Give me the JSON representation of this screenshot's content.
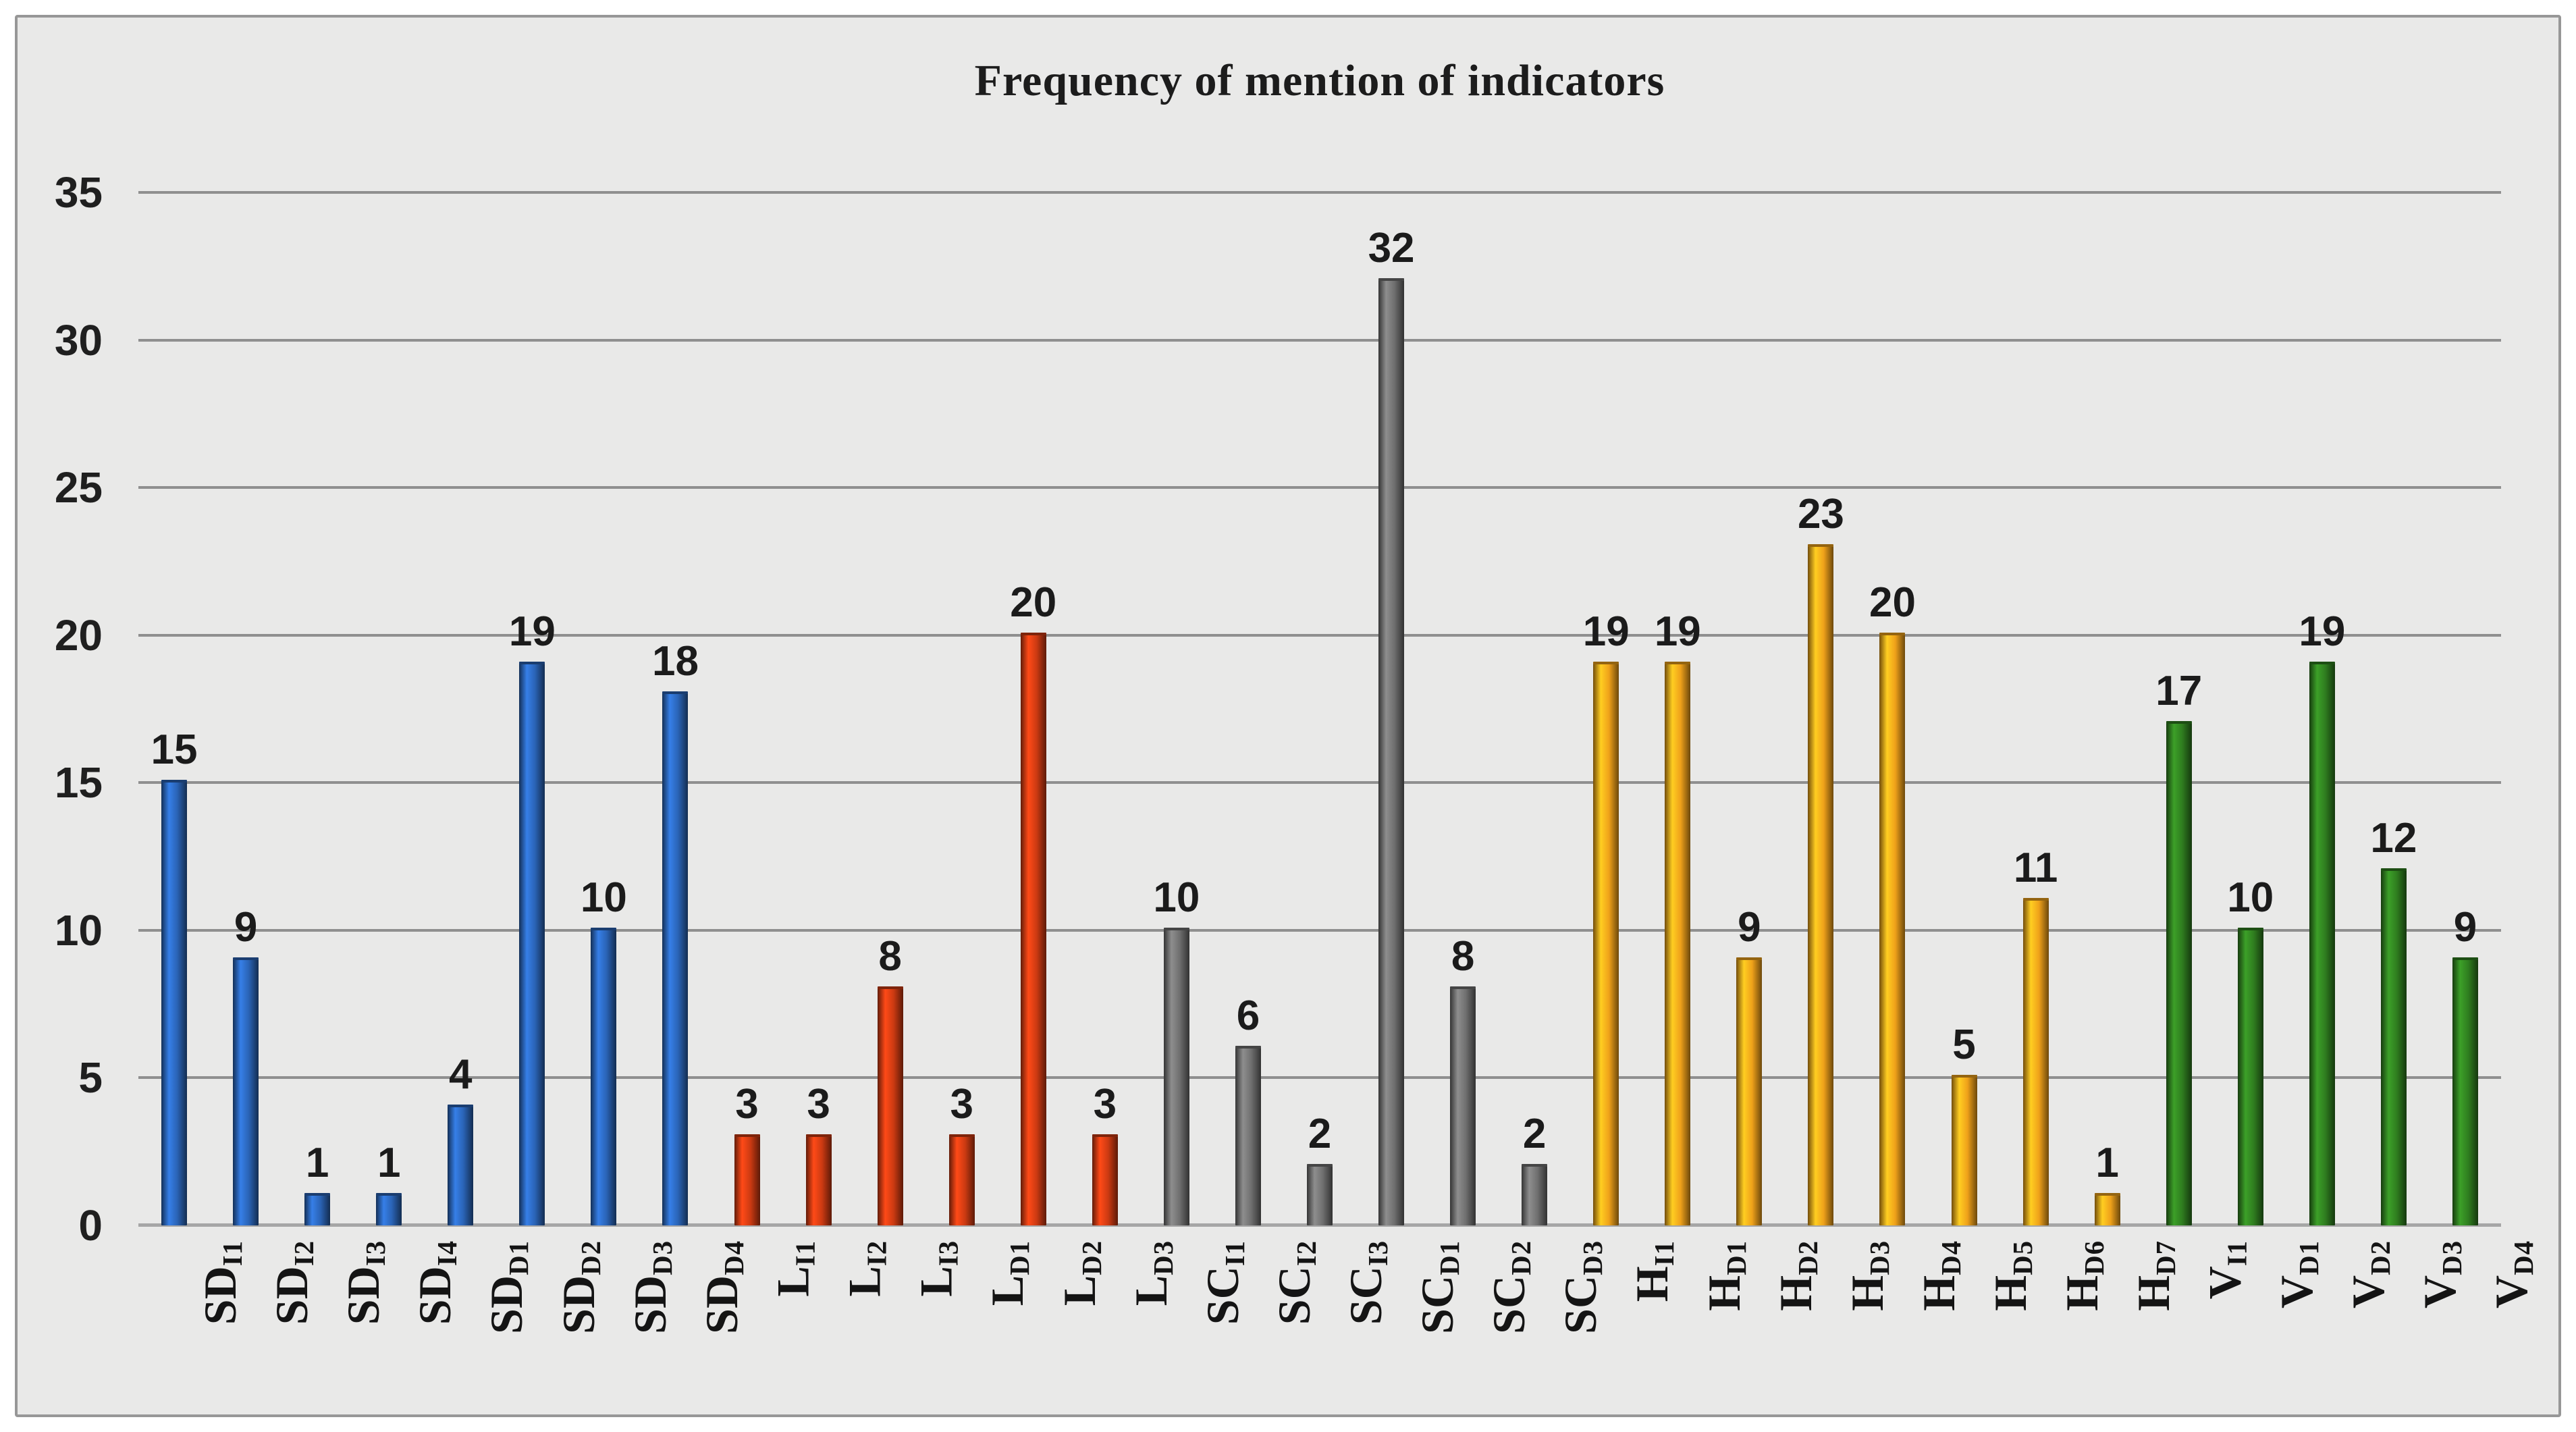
{
  "chart_data": {
    "type": "bar",
    "title": "Frequency of mention of indicators",
    "xlabel": "",
    "ylabel": "",
    "ylim": [
      0,
      35
    ],
    "yticks": [
      0,
      5,
      10,
      15,
      20,
      25,
      30,
      35
    ],
    "grid": true,
    "legend": "none",
    "background_color": "#e9e9e8",
    "gridline_color": "#8f8f8f",
    "frame_border_color": "#979797",
    "group_colors": {
      "SD": "#2a63b5",
      "L": "#cc3a12",
      "SC": "#6f6f6f",
      "H": "#efa11a",
      "V": "#2f7d1f"
    },
    "categories": [
      "SD_I1",
      "SD_I2",
      "SD_I3",
      "SD_I4",
      "SD_D1",
      "SD_D2",
      "SD_D3",
      "SD_D4",
      "L_I1",
      "L_I2",
      "L_I3",
      "L_D1",
      "L_D2",
      "L_D3",
      "SC_I1",
      "SC_I2",
      "SC_I3",
      "SC_D1",
      "SC_D2",
      "SC_D3",
      "H_I1",
      "H_D1",
      "H_D2",
      "H_D3",
      "H_D4",
      "H_D5",
      "H_D6",
      "H_D7",
      "V_I1",
      "V_D1",
      "V_D2",
      "V_D3",
      "V_D4"
    ],
    "values": [
      15,
      9,
      1,
      1,
      4,
      19,
      10,
      18,
      3,
      3,
      8,
      3,
      20,
      3,
      10,
      6,
      2,
      32,
      8,
      2,
      19,
      19,
      9,
      23,
      20,
      5,
      11,
      1,
      17,
      10,
      19,
      12,
      9
    ],
    "bars": [
      {
        "main": "SD",
        "sub": "I1",
        "value": 15,
        "group": "SD"
      },
      {
        "main": "SD",
        "sub": "I2",
        "value": 9,
        "group": "SD"
      },
      {
        "main": "SD",
        "sub": "I3",
        "value": 1,
        "group": "SD"
      },
      {
        "main": "SD",
        "sub": "I4",
        "value": 1,
        "group": "SD"
      },
      {
        "main": "SD",
        "sub": "D1",
        "value": 4,
        "group": "SD"
      },
      {
        "main": "SD",
        "sub": "D2",
        "value": 19,
        "group": "SD"
      },
      {
        "main": "SD",
        "sub": "D3",
        "value": 10,
        "group": "SD"
      },
      {
        "main": "SD",
        "sub": "D4",
        "value": 18,
        "group": "SD"
      },
      {
        "main": "L",
        "sub": "I1",
        "value": 3,
        "group": "L"
      },
      {
        "main": "L",
        "sub": "I2",
        "value": 3,
        "group": "L"
      },
      {
        "main": "L",
        "sub": "I3",
        "value": 8,
        "group": "L"
      },
      {
        "main": "L",
        "sub": "D1",
        "value": 3,
        "group": "L"
      },
      {
        "main": "L",
        "sub": "D2",
        "value": 20,
        "group": "L"
      },
      {
        "main": "L",
        "sub": "D3",
        "value": 3,
        "group": "L"
      },
      {
        "main": "SC",
        "sub": "I1",
        "value": 10,
        "group": "SC"
      },
      {
        "main": "SC",
        "sub": "I2",
        "value": 6,
        "group": "SC"
      },
      {
        "main": "SC",
        "sub": "I3",
        "value": 2,
        "group": "SC"
      },
      {
        "main": "SC",
        "sub": "D1",
        "value": 32,
        "group": "SC"
      },
      {
        "main": "SC",
        "sub": "D2",
        "value": 8,
        "group": "SC"
      },
      {
        "main": "SC",
        "sub": "D3",
        "value": 2,
        "group": "SC"
      },
      {
        "main": "H",
        "sub": "I1",
        "value": 19,
        "group": "H"
      },
      {
        "main": "H",
        "sub": "D1",
        "value": 19,
        "group": "H"
      },
      {
        "main": "H",
        "sub": "D2",
        "value": 9,
        "group": "H"
      },
      {
        "main": "H",
        "sub": "D3",
        "value": 23,
        "group": "H"
      },
      {
        "main": "H",
        "sub": "D4",
        "value": 20,
        "group": "H"
      },
      {
        "main": "H",
        "sub": "D5",
        "value": 5,
        "group": "H"
      },
      {
        "main": "H",
        "sub": "D6",
        "value": 11,
        "group": "H"
      },
      {
        "main": "H",
        "sub": "D7",
        "value": 1,
        "group": "H"
      },
      {
        "main": "V",
        "sub": "I1",
        "value": 17,
        "group": "V"
      },
      {
        "main": "V",
        "sub": "D1",
        "value": 10,
        "group": "V"
      },
      {
        "main": "V",
        "sub": "D2",
        "value": 19,
        "group": "V"
      },
      {
        "main": "V",
        "sub": "D3",
        "value": 12,
        "group": "V"
      },
      {
        "main": "V",
        "sub": "D4",
        "value": 9,
        "group": "V"
      }
    ]
  }
}
